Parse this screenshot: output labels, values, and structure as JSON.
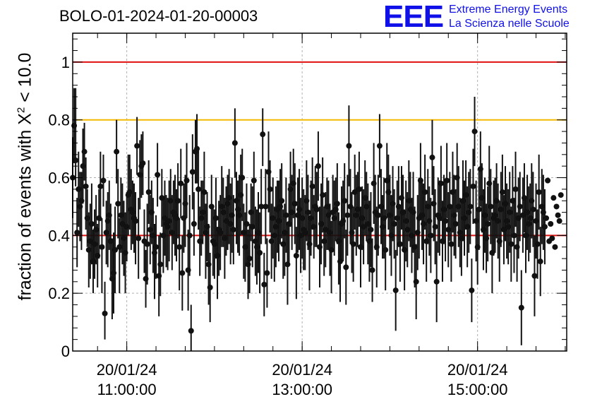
{
  "header": {
    "run_title": "BOLO-01-2024-01-20-00003",
    "logo_mark": "EEE",
    "logo_line1": "Extreme Energy Events",
    "logo_line2": "La Scienza nelle Scuole"
  },
  "chart_data": {
    "type": "scatter",
    "title": "BOLO-01-2024-01-20-00003",
    "xlabel": "",
    "ylabel_prefix": "fraction of events with ",
    "ylabel_symbol": "X",
    "ylabel_sup": "2",
    "ylabel_suffix": " < 10.0",
    "x_range": [
      "2024-01-20 10:23",
      "2024-01-20 16:01"
    ],
    "ylim": [
      0,
      1.1
    ],
    "y_ticks": [
      {
        "value": 0,
        "label": "0"
      },
      {
        "value": 0.2,
        "label": "0.2"
      },
      {
        "value": 0.4,
        "label": "0.4"
      },
      {
        "value": 0.6,
        "label": "0.6"
      },
      {
        "value": 0.8,
        "label": "0.8"
      },
      {
        "value": 1,
        "label": "1"
      }
    ],
    "x_ticks": [
      {
        "time": "11:00",
        "date_label": "20/01/24",
        "time_label": "11:00:00"
      },
      {
        "time": "13:00",
        "date_label": "20/01/24",
        "time_label": "13:00:00"
      },
      {
        "time": "15:00",
        "date_label": "20/01/24",
        "time_label": "15:00:00"
      }
    ],
    "grid": true,
    "reference_lines": [
      {
        "y": 1.0,
        "color": "#e01010"
      },
      {
        "y": 0.8,
        "color": "#f5b800"
      },
      {
        "y": 0.4,
        "color": "#e01010"
      }
    ],
    "points": {
      "start_time": "10:23",
      "step_minutes": 1,
      "marker_color": "#111111",
      "values": [
        0.6,
        0.78,
        0.66,
        0.41,
        0.56,
        0.5,
        0.52,
        0.64,
        0.69,
        0.57,
        0.46,
        0.35,
        0.38,
        0.44,
        0.31,
        0.37,
        0.42,
        0.33,
        0.46,
        0.57,
        0.36,
        0.59,
        0.13,
        0.41,
        0.45,
        0.47,
        0.38,
        0.25,
        0.27,
        0.35,
        0.69,
        0.51,
        0.36,
        0.47,
        0.44,
        0.39,
        0.34,
        0.43,
        0.54,
        0.55,
        0.49,
        0.48,
        0.46,
        0.45,
        0.71,
        0.39,
        0.61,
        0.64,
        0.65,
        0.38,
        0.25,
        0.37,
        0.55,
        0.42,
        0.48,
        0.4,
        0.34,
        0.36,
        0.61,
        0.26,
        0.3,
        0.53,
        0.4,
        0.46,
        0.44,
        0.43,
        0.45,
        0.52,
        0.41,
        0.48,
        0.47,
        0.46,
        0.52,
        0.36,
        0.58,
        0.27,
        0.46,
        0.51,
        0.59,
        0.28,
        0.4,
        0.07,
        0.62,
        0.44,
        0.69,
        0.7,
        0.56,
        0.38,
        0.46,
        0.48,
        0.55,
        0.41,
        0.43,
        0.3,
        0.22,
        0.5,
        0.38,
        0.37,
        0.46,
        0.33,
        0.42,
        0.41,
        0.5,
        0.48,
        0.39,
        0.45,
        0.51,
        0.53,
        0.44,
        0.47,
        0.42,
        0.72,
        0.52,
        0.49,
        0.47,
        0.54,
        0.6,
        0.41,
        0.36,
        0.44,
        0.3,
        0.32,
        0.48,
        0.43,
        0.59,
        0.38,
        0.36,
        0.41,
        0.34,
        0.5,
        0.75,
        0.23,
        0.5,
        0.27,
        0.62,
        0.56,
        0.38,
        0.46,
        0.4,
        0.43,
        0.49,
        0.45,
        0.5,
        0.52,
        0.37,
        0.41,
        0.47,
        0.3,
        0.44,
        0.56,
        0.48,
        0.58,
        0.51,
        0.33,
        0.47,
        0.49,
        0.4,
        0.46,
        0.42,
        0.41,
        0.52,
        0.48,
        0.37,
        0.46,
        0.57,
        0.43,
        0.5,
        0.49,
        0.64,
        0.36,
        0.44,
        0.54,
        0.38,
        0.42,
        0.5,
        0.47,
        0.41,
        0.35,
        0.48,
        0.46,
        0.49,
        0.51,
        0.38,
        0.31,
        0.44,
        0.45,
        0.52,
        0.29,
        0.47,
        0.71,
        0.5,
        0.41,
        0.37,
        0.55,
        0.47,
        0.49,
        0.56,
        0.36,
        0.46,
        0.43,
        0.53,
        0.5,
        0.44,
        0.38,
        0.42,
        0.28,
        0.58,
        0.48,
        0.36,
        0.47,
        0.71,
        0.5,
        0.43,
        0.46,
        0.35,
        0.59,
        0.55,
        0.47,
        0.4,
        0.51,
        0.44,
        0.21,
        0.46,
        0.5,
        0.37,
        0.53,
        0.48,
        0.35,
        0.45,
        0.42,
        0.52,
        0.49,
        0.4,
        0.48,
        0.36,
        0.24,
        0.41,
        0.46,
        0.59,
        0.47,
        0.44,
        0.55,
        0.38,
        0.5,
        0.45,
        0.4,
        0.67,
        0.51,
        0.43,
        0.24,
        0.47,
        0.46,
        0.58,
        0.38,
        0.49,
        0.45,
        0.59,
        0.42,
        0.5,
        0.37,
        0.55,
        0.47,
        0.44,
        0.6,
        0.5,
        0.41,
        0.39,
        0.52,
        0.46,
        0.54,
        0.43,
        0.48,
        0.5,
        0.21,
        0.57,
        0.76,
        0.45,
        0.36,
        0.49,
        0.63,
        0.53,
        0.42,
        0.47,
        0.39,
        0.44,
        0.58,
        0.5,
        0.34,
        0.46,
        0.47,
        0.52,
        0.45,
        0.38,
        0.49,
        0.55,
        0.42,
        0.51,
        0.45,
        0.43,
        0.48,
        0.37,
        0.52,
        0.4,
        0.56,
        0.36,
        0.46,
        0.5,
        0.15,
        0.47,
        0.53,
        0.4,
        0.48,
        0.44,
        0.46,
        0.52,
        0.49,
        0.26,
        0.45,
        0.37,
        0.55,
        0.31,
        0.5,
        0.48,
        0.43,
        0.46,
        0.59,
        0.38,
        0.44,
        0.39,
        0.53,
        0.36,
        0.5,
        0.47,
        0.45,
        0.54
      ],
      "err_low": [
        0.14,
        0.13,
        0.09,
        0.12,
        0.13,
        0.12,
        0.17,
        0.13,
        0.1,
        0.15,
        0.1,
        0.13,
        0.13,
        0.14,
        0.11,
        0.12,
        0.12,
        0.11,
        0.14,
        0.12,
        0.16,
        0.09,
        0.09,
        0.11,
        0.16,
        0.12,
        0.13,
        0.14,
        0.14,
        0.15,
        0.11,
        0.12,
        0.16,
        0.13,
        0.14,
        0.13,
        0.14,
        0.12,
        0.14,
        0.13,
        0.14,
        0.11,
        0.12,
        0.15,
        0.1,
        0.14,
        0.12,
        0.11,
        0.11,
        0.11,
        0.1,
        0.14,
        0.11,
        0.12,
        0.11,
        0.13,
        0.16,
        0.11,
        0.11,
        0.14,
        0.11,
        0.1,
        0.13,
        0.13,
        0.15,
        0.15,
        0.14,
        0.11,
        0.13,
        0.11,
        0.14,
        0.15,
        0.13,
        0.15,
        0.12,
        0.13,
        0.12,
        0.15,
        0.13,
        0.14,
        0.14,
        0.08,
        0.13,
        0.11,
        0.11,
        0.12,
        0.14,
        0.12,
        0.13,
        0.11,
        0.14,
        0.16,
        0.12,
        0.14,
        0.12,
        0.11,
        0.12,
        0.12,
        0.14,
        0.15,
        0.16,
        0.13,
        0.14,
        0.12,
        0.14,
        0.12,
        0.16,
        0.16,
        0.14,
        0.13,
        0.12,
        0.12,
        0.15,
        0.15,
        0.14,
        0.14,
        0.15,
        0.16,
        0.12,
        0.14,
        0.12,
        0.12,
        0.1,
        0.14,
        0.16,
        0.12,
        0.13,
        0.14,
        0.14,
        0.13,
        0.11,
        0.11,
        0.13,
        0.12,
        0.14,
        0.15,
        0.13,
        0.14,
        0.16,
        0.14,
        0.15,
        0.14,
        0.13,
        0.13,
        0.12,
        0.15,
        0.13,
        0.14,
        0.14,
        0.13,
        0.13,
        0.12,
        0.14,
        0.15,
        0.13,
        0.14,
        0.13,
        0.14,
        0.14,
        0.13,
        0.14,
        0.13,
        0.16,
        0.13,
        0.15,
        0.11,
        0.14,
        0.13,
        0.12,
        0.14,
        0.14,
        0.13,
        0.12,
        0.13,
        0.15,
        0.12,
        0.15,
        0.15,
        0.13,
        0.13,
        0.11,
        0.14,
        0.15,
        0.14,
        0.13,
        0.14,
        0.13,
        0.13,
        0.14,
        0.14,
        0.13,
        0.14,
        0.13,
        0.13,
        0.14,
        0.13,
        0.13,
        0.14,
        0.11,
        0.13,
        0.13,
        0.12,
        0.14,
        0.14,
        0.13,
        0.11,
        0.14,
        0.13,
        0.14,
        0.14,
        0.11,
        0.13,
        0.11,
        0.14,
        0.14,
        0.13,
        0.13,
        0.14,
        0.14,
        0.13,
        0.12,
        0.14,
        0.13,
        0.14,
        0.13,
        0.11,
        0.13,
        0.14,
        0.14,
        0.13,
        0.14,
        0.13,
        0.13,
        0.14,
        0.14,
        0.13,
        0.13,
        0.14,
        0.13,
        0.12,
        0.14,
        0.13,
        0.14,
        0.13,
        0.12,
        0.13,
        0.13,
        0.13,
        0.13,
        0.14,
        0.13,
        0.13,
        0.13,
        0.14,
        0.12,
        0.14,
        0.13,
        0.13,
        0.12,
        0.13,
        0.14,
        0.14,
        0.12,
        0.12,
        0.14,
        0.12,
        0.13,
        0.14,
        0.13,
        0.12,
        0.14,
        0.14,
        0.13,
        0.11,
        0.13,
        0.12,
        0.14,
        0.13,
        0.14,
        0.13,
        0.12,
        0.14,
        0.13,
        0.12,
        0.13,
        0.13,
        0.13,
        0.14,
        0.13,
        0.13,
        0.13,
        0.13,
        0.14,
        0.13,
        0.13,
        0.12,
        0.13,
        0.13,
        0.13,
        0.14,
        0.13,
        0.12,
        0.13,
        0.13,
        0.12,
        0.14,
        0.12,
        0.13,
        0.13,
        0.12,
        0.13,
        0.13,
        0.13,
        0.12,
        0.13,
        0.13,
        0.14,
        0.13,
        0.12,
        0.13,
        0.12,
        0.13,
        0.13,
        0.13
      ],
      "err_high": [
        0.14,
        0.13,
        0.25,
        0.12,
        0.13,
        0.12,
        0.1,
        0.13,
        0.1,
        0.1,
        0.1,
        0.13,
        0.13,
        0.14,
        0.11,
        0.12,
        0.12,
        0.11,
        0.1,
        0.12,
        0.1,
        0.09,
        0.11,
        0.11,
        0.1,
        0.12,
        0.13,
        0.14,
        0.14,
        0.15,
        0.11,
        0.12,
        0.1,
        0.13,
        0.14,
        0.13,
        0.14,
        0.12,
        0.14,
        0.13,
        0.14,
        0.11,
        0.12,
        0.1,
        0.1,
        0.14,
        0.12,
        0.11,
        0.11,
        0.11,
        0.1,
        0.14,
        0.11,
        0.12,
        0.11,
        0.13,
        0.1,
        0.11,
        0.11,
        0.14,
        0.11,
        0.1,
        0.13,
        0.13,
        0.1,
        0.1,
        0.14,
        0.11,
        0.13,
        0.11,
        0.14,
        0.1,
        0.13,
        0.1,
        0.12,
        0.13,
        0.12,
        0.1,
        0.13,
        0.14,
        0.14,
        0.09,
        0.13,
        0.11,
        0.11,
        0.12,
        0.14,
        0.12,
        0.13,
        0.11,
        0.14,
        0.1,
        0.12,
        0.14,
        0.12,
        0.11,
        0.12,
        0.12,
        0.14,
        0.1,
        0.1,
        0.13,
        0.14,
        0.12,
        0.14,
        0.12,
        0.1,
        0.1,
        0.14,
        0.13,
        0.12,
        0.12,
        0.1,
        0.1,
        0.14,
        0.14,
        0.1,
        0.1,
        0.12,
        0.14,
        0.12,
        0.12,
        0.1,
        0.14,
        0.1,
        0.12,
        0.13,
        0.14,
        0.14,
        0.13,
        0.09,
        0.11,
        0.13,
        0.12,
        0.14,
        0.1,
        0.13,
        0.14,
        0.1,
        0.14,
        0.1,
        0.14,
        0.13,
        0.13,
        0.12,
        0.1,
        0.13,
        0.14,
        0.14,
        0.13,
        0.13,
        0.12,
        0.14,
        0.1,
        0.13,
        0.14,
        0.13,
        0.14,
        0.14,
        0.13,
        0.14,
        0.13,
        0.1,
        0.13,
        0.1,
        0.11,
        0.14,
        0.13,
        0.12,
        0.14,
        0.14,
        0.13,
        0.12,
        0.13,
        0.1,
        0.12,
        0.1,
        0.1,
        0.13,
        0.13,
        0.11,
        0.14,
        0.1,
        0.14,
        0.13,
        0.14,
        0.13,
        0.13,
        0.14,
        0.14,
        0.13,
        0.14,
        0.13,
        0.13,
        0.14,
        0.13,
        0.13,
        0.14,
        0.11,
        0.13,
        0.13,
        0.12,
        0.14,
        0.14,
        0.13,
        0.11,
        0.14,
        0.13,
        0.14,
        0.14,
        0.11,
        0.13,
        0.11,
        0.14,
        0.14,
        0.13,
        0.13,
        0.14,
        0.14,
        0.13,
        0.12,
        0.14,
        0.13,
        0.14,
        0.13,
        0.11,
        0.13,
        0.14,
        0.14,
        0.13,
        0.14,
        0.13,
        0.13,
        0.14,
        0.14,
        0.13,
        0.13,
        0.14,
        0.13,
        0.12,
        0.14,
        0.13,
        0.14,
        0.13,
        0.12,
        0.13,
        0.13,
        0.13,
        0.13,
        0.14,
        0.13,
        0.13,
        0.13,
        0.14,
        0.12,
        0.14,
        0.13,
        0.13,
        0.12,
        0.13,
        0.14,
        0.14,
        0.12,
        0.12,
        0.14,
        0.12,
        0.13,
        0.14,
        0.13,
        0.12,
        0.14,
        0.14,
        0.13,
        0.11,
        0.13,
        0.12,
        0.14,
        0.13,
        0.14,
        0.13,
        0.12,
        0.14,
        0.13,
        0.12,
        0.13,
        0.13,
        0.13,
        0.14,
        0.13,
        0.13,
        0.13,
        0.13,
        0.14,
        0.13,
        0.13,
        0.12,
        0.13,
        0.13,
        0.13,
        0.14,
        0.13,
        0.12,
        0.13,
        0.13,
        0.12,
        0.14,
        0.12,
        0.13,
        0.13,
        0.12,
        0.13,
        0.13,
        0.13,
        0.12,
        0.13,
        0.13,
        0.14,
        0.13,
        0.12,
        0.13,
        0.12,
        0.13,
        0.13,
        0.13
      ]
    }
  }
}
